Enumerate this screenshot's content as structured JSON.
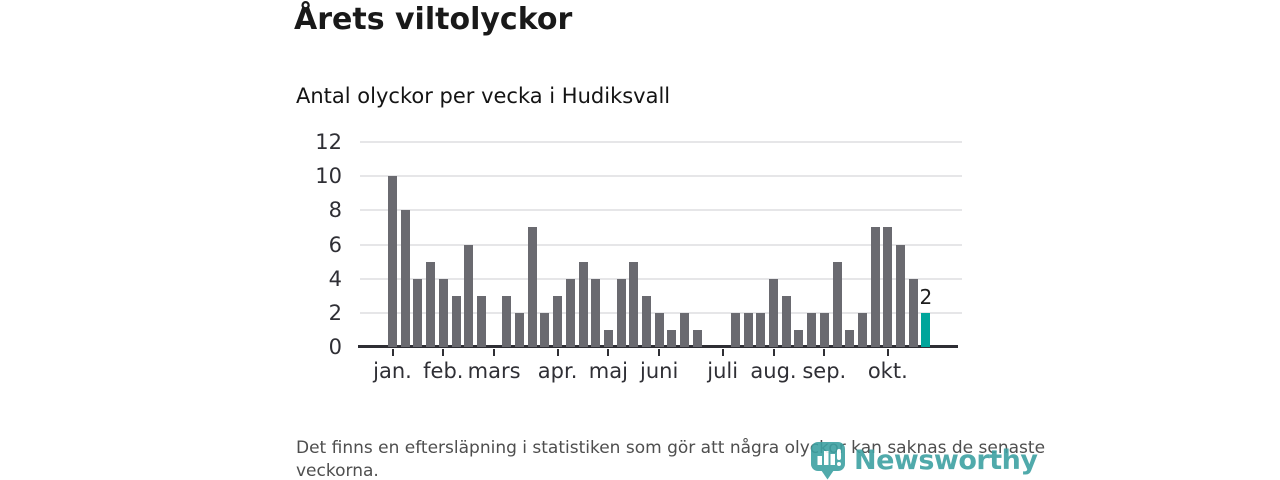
{
  "chart_data": {
    "type": "bar",
    "title": "Årets viltolyckor",
    "subtitle": "Antal olyckor per vecka i Hudiksvall",
    "xlabel": "",
    "ylabel": "",
    "x": [
      1,
      2,
      3,
      4,
      5,
      6,
      7,
      8,
      9,
      10,
      11,
      12,
      13,
      14,
      15,
      16,
      17,
      18,
      19,
      20,
      21,
      22,
      23,
      24,
      25,
      26,
      27,
      28,
      29,
      30,
      31,
      32,
      33,
      34,
      35,
      36,
      37,
      38,
      39,
      40,
      41,
      42,
      43
    ],
    "values": [
      10,
      8,
      4,
      5,
      4,
      3,
      6,
      3,
      0,
      3,
      2,
      7,
      2,
      3,
      4,
      5,
      4,
      1,
      4,
      5,
      3,
      2,
      1,
      2,
      1,
      0,
      0,
      2,
      2,
      2,
      4,
      3,
      1,
      2,
      2,
      5,
      1,
      2,
      7,
      7,
      6,
      4,
      2
    ],
    "yticks": [
      0,
      2,
      4,
      6,
      8,
      10,
      12
    ],
    "ylim": [
      0,
      12
    ],
    "grid": true,
    "legend": "none",
    "months": [
      {
        "label": "jan.",
        "week": 1
      },
      {
        "label": "feb.",
        "week": 5
      },
      {
        "label": "mars",
        "week": 9
      },
      {
        "label": "apr.",
        "week": 14
      },
      {
        "label": "maj",
        "week": 18
      },
      {
        "label": "juni",
        "week": 22
      },
      {
        "label": "juli",
        "week": 27
      },
      {
        "label": "aug.",
        "week": 31
      },
      {
        "label": "sep.",
        "week": 35
      },
      {
        "label": "okt.",
        "week": 40
      }
    ],
    "last_value_label": "2",
    "colors": {
      "bar": "#6a6a70",
      "highlight": "#00a59b",
      "axis": "#2e2e34",
      "gridline": "#e6e6e8"
    }
  },
  "footer": {
    "note": "Det finns en eftersläpning i statistiken som gör att några olyckor kan saknas de senaste veckorna.",
    "logo_text": "Newsworthy",
    "logo_color": "#3ea1a2"
  }
}
